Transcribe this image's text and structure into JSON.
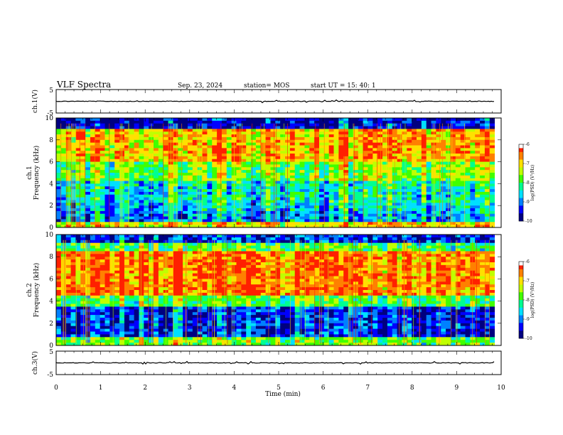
{
  "header": {
    "title": "VLF Spectra",
    "date": "Sep. 23, 2024",
    "station": "station= MOS",
    "start": "start  UT =   15: 40: 1"
  },
  "colors": {
    "spectrogram_scale": [
      "#000080",
      "#0000ff",
      "#0080ff",
      "#00e0ff",
      "#00ff90",
      "#40ff00",
      "#c0ff00",
      "#ffe000",
      "#ff8000",
      "#ff2000"
    ]
  },
  "chart_data": [
    {
      "id": "ch1-waveform",
      "type": "line",
      "ylabel": "ch.1(V)",
      "ylim": [
        -5,
        5
      ],
      "yticks": [
        "5",
        "-5"
      ],
      "xlim": [
        0,
        10
      ],
      "series_level": 0
    },
    {
      "id": "ch1-spectrogram",
      "type": "heatmap",
      "ylabel_channel": "ch.1",
      "ylabel": "Frequency (kHz)",
      "ylim": [
        0,
        10
      ],
      "yticks": [
        "10",
        "8",
        "6",
        "4",
        "2",
        "0"
      ],
      "xlim": [
        0,
        10
      ],
      "data_end_min": 9.85,
      "colorbar": {
        "label": "log(PSD) (V²/Hz)",
        "ticks": [
          "-6",
          "-7",
          "-8",
          "-9",
          "-10"
        ],
        "range": [
          -10,
          -6
        ]
      },
      "bands": [
        {
          "f_low": 0,
          "f_high": 0.6,
          "level": -7.2
        },
        {
          "f_low": 0.6,
          "f_high": 1.4,
          "level": -9.0
        },
        {
          "f_low": 1.4,
          "f_high": 2.2,
          "level": -8.7
        },
        {
          "f_low": 2.2,
          "f_high": 4.2,
          "level": -8.5
        },
        {
          "f_low": 4.2,
          "f_high": 6.0,
          "level": -7.8
        },
        {
          "f_low": 6.0,
          "f_high": 9.0,
          "level": -7.0
        },
        {
          "f_low": 9.0,
          "f_high": 10,
          "level": -9.7
        }
      ]
    },
    {
      "id": "ch2-spectrogram",
      "type": "heatmap",
      "ylabel_channel": "ch.2",
      "ylabel": "Frequency (kHz)",
      "ylim": [
        0,
        10
      ],
      "yticks": [
        "10",
        "8",
        "6",
        "4",
        "2",
        "0"
      ],
      "xlim": [
        0,
        10
      ],
      "data_end_min": 9.85,
      "colorbar": {
        "label": "log(PSD) (V²/Hz)",
        "ticks": [
          "-6",
          "-7",
          "-8",
          "-9",
          "-10"
        ],
        "range": [
          -10,
          -6
        ]
      },
      "bands": [
        {
          "f_low": 0,
          "f_high": 0.8,
          "level": -7.8
        },
        {
          "f_low": 0.8,
          "f_high": 3.5,
          "level": -9.4
        },
        {
          "f_low": 3.5,
          "f_high": 4.5,
          "level": -8.0
        },
        {
          "f_low": 4.5,
          "f_high": 8.5,
          "level": -6.6
        },
        {
          "f_low": 8.5,
          "f_high": 9.3,
          "level": -8.0
        },
        {
          "f_low": 9.3,
          "f_high": 10,
          "level": -9.4
        }
      ]
    },
    {
      "id": "ch3-waveform",
      "type": "line",
      "ylabel": "ch.3(V)",
      "ylim": [
        -5,
        5
      ],
      "yticks": [
        "5",
        "-5"
      ],
      "xlim": [
        0,
        10
      ],
      "series_level": 0
    }
  ],
  "x_axis": {
    "label": "Time (min)",
    "ticks": [
      "0",
      "1",
      "2",
      "3",
      "4",
      "5",
      "6",
      "7",
      "8",
      "9",
      "10"
    ]
  }
}
